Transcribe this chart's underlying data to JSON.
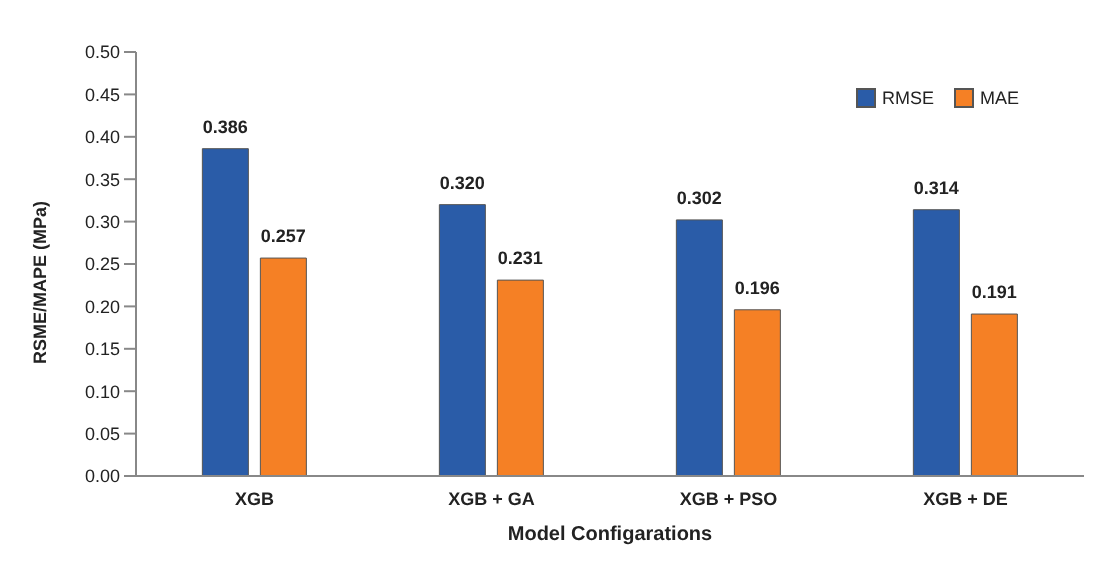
{
  "chart_data": {
    "type": "bar",
    "xlabel": "Model Configarations",
    "ylabel": "RSME/MAPE (MPa)",
    "categories": [
      "XGB",
      "XGB + GA",
      "XGB + PSO",
      "XGB + DE"
    ],
    "series": [
      {
        "name": "RMSE",
        "color": "#2a5ca8",
        "values": [
          0.386,
          0.32,
          0.302,
          0.314
        ],
        "value_labels": [
          "0.386",
          "0.320",
          "0.302",
          "0.314"
        ]
      },
      {
        "name": "MAE",
        "color": "#f58025",
        "values": [
          0.257,
          0.231,
          0.196,
          0.191
        ],
        "value_labels": [
          "0.257",
          "0.231",
          "0.196",
          "0.191"
        ]
      }
    ],
    "ylim": [
      0,
      0.5
    ],
    "yticks": [
      {
        "value": 0,
        "label": "0.00"
      },
      {
        "value": 0.05,
        "label": "0.05"
      },
      {
        "value": 0.1,
        "label": "0.10"
      },
      {
        "value": 0.15,
        "label": "0.15"
      },
      {
        "value": 0.2,
        "label": "0.20"
      },
      {
        "value": 0.25,
        "label": "0.25"
      },
      {
        "value": 0.3,
        "label": "0.30"
      },
      {
        "value": 0.35,
        "label": "0.35"
      },
      {
        "value": 0.4,
        "label": "0.40"
      },
      {
        "value": 0.45,
        "label": "0.45"
      },
      {
        "value": 0.5,
        "label": "0.50"
      }
    ],
    "legend": "top right",
    "grid": false
  }
}
